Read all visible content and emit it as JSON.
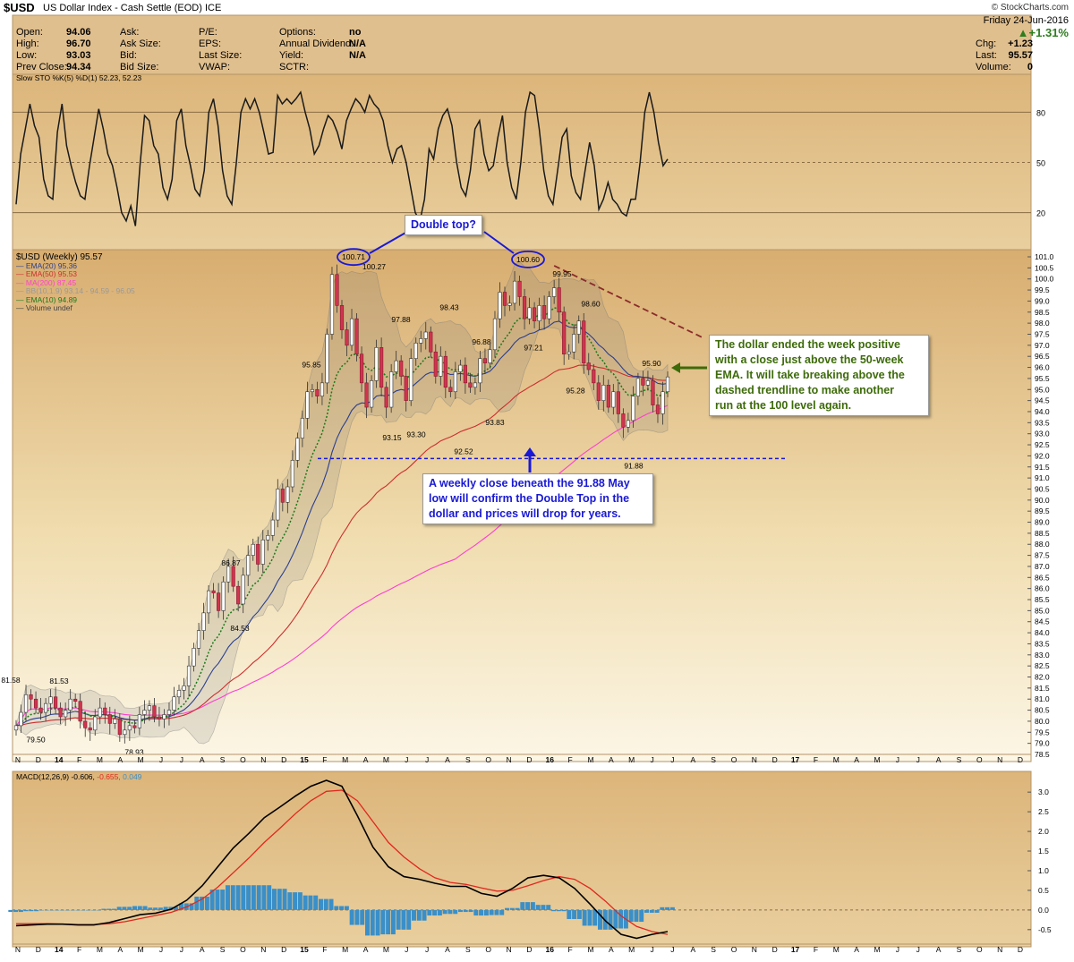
{
  "header": {
    "symbol": "$USD",
    "name": "US Dollar Index - Cash Settle (EOD)",
    "exchange": "ICE",
    "brand": "© StockCharts.com",
    "date": "Friday 24-Jun-2016",
    "change_pct": "▲+1.31%",
    "quote_left": [
      [
        "Open:",
        "94.06"
      ],
      [
        "High:",
        "96.70"
      ],
      [
        "Low:",
        "93.03"
      ],
      [
        "Prev Close:",
        "94.34"
      ]
    ],
    "quote_mid": [
      [
        "Ask:",
        ""
      ],
      [
        "Ask Size:",
        ""
      ],
      [
        "Bid:",
        ""
      ],
      [
        "Bid Size:",
        ""
      ]
    ],
    "quote_mid2": [
      [
        "P/E:",
        ""
      ],
      [
        "EPS:",
        ""
      ],
      [
        "Last Size:",
        ""
      ],
      [
        "VWAP:",
        ""
      ]
    ],
    "quote_mid3": [
      [
        "Options:",
        "no"
      ],
      [
        "Annual Dividend:",
        "N/A"
      ],
      [
        "Yield:",
        "N/A"
      ],
      [
        "SCTR:",
        ""
      ]
    ],
    "quote_right": [
      [
        "Chg:",
        "+1.23"
      ],
      [
        "Last:",
        "95.57"
      ],
      [
        "Volume:",
        "0"
      ]
    ]
  },
  "colors": {
    "panel": "#e0bf8e",
    "gradient_top": "#dfb882",
    "gradient_bottom": "#f8f0de",
    "up": "#ffffff",
    "down": "#d0344e",
    "ema20": "#2a3f8f",
    "ema50": "#cc2f2f",
    "ma200": "#ff3fd0",
    "ema10": "#1a7a1a",
    "bb": "#888888",
    "trend": "#8b2b2b",
    "annotation_blue": "#1919d6",
    "annotation_green": "#3d6b0a",
    "macd": "#000000",
    "signal": "#e0281e",
    "hist": "#3a8fc8"
  },
  "annotations": {
    "double_top": "Double top?",
    "green_note": [
      "The dollar ended the week positive",
      "with a close just above the 50-week",
      "EMA. It will take breaking above the",
      "dashed trendline to make another",
      "run at the 100 level again."
    ],
    "blue_note": [
      "A weekly close beneath the 91.88 May",
      "low will confirm the Double Top in the",
      "dollar and prices will drop for years."
    ]
  },
  "legends": {
    "sto": "Slow STO %K(5) %D(1) 52.23, 52.23",
    "sto_value_highlight": "52.23",
    "price": [
      {
        "text": "$USD (Weekly) 95.57",
        "color": "#000000"
      },
      {
        "text": "EMA(20) 95.36",
        "color": "#2a3f8f"
      },
      {
        "text": "EMA(50) 95.53",
        "color": "#cc2f2f"
      },
      {
        "text": "MA(200) 87.45",
        "color": "#ff3fd0"
      },
      {
        "text": "BB(10,1.9) 93.14 - 94.59 - 96.05",
        "color": "#999999"
      },
      {
        "text": "EMA(10) 94.89",
        "color": "#1a7a1a"
      },
      {
        "text": "Volume undef",
        "color": "#444444"
      }
    ],
    "macd": [
      "MACD(12,26,9)",
      "-0.606,",
      "-0.655,",
      "0.049"
    ]
  },
  "chart_data": [
    {
      "type": "line",
      "name": "Slow STO %K(5) %D(1)",
      "ylim": [
        0,
        100
      ],
      "yticks": [
        20,
        50,
        80
      ],
      "values": [
        25,
        55,
        70,
        85,
        72,
        65,
        40,
        30,
        28,
        68,
        85,
        60,
        48,
        38,
        30,
        28,
        48,
        65,
        82,
        70,
        55,
        48,
        35,
        20,
        15,
        24,
        12,
        48,
        78,
        75,
        60,
        55,
        35,
        28,
        40,
        75,
        82,
        60,
        48,
        34,
        30,
        45,
        80,
        88,
        72,
        45,
        30,
        25,
        50,
        80,
        88,
        82,
        88,
        80,
        68,
        55,
        56,
        90,
        85,
        88,
        85,
        88,
        92,
        80,
        70,
        55,
        60,
        70,
        78,
        75,
        68,
        58,
        75,
        82,
        88,
        85,
        80,
        90,
        85,
        82,
        75,
        60,
        50,
        58,
        60,
        50,
        35,
        20,
        15,
        28,
        58,
        52,
        70,
        78,
        82,
        72,
        50,
        35,
        30,
        45,
        70,
        75,
        55,
        45,
        48,
        65,
        78,
        50,
        35,
        28,
        50,
        80,
        92,
        90,
        70,
        45,
        30,
        25,
        45,
        65,
        70,
        42,
        32,
        28,
        45,
        62,
        48,
        22,
        28,
        38,
        28,
        25,
        20,
        18,
        28,
        28,
        50,
        80,
        92,
        80,
        62,
        48,
        52
      ]
    },
    {
      "type": "candlestick",
      "name": "$USD (Weekly)",
      "ylim": [
        78.5,
        101.0
      ],
      "x_labels": [
        "N",
        "D",
        "14",
        "F",
        "M",
        "A",
        "M",
        "J",
        "J",
        "A",
        "S",
        "O",
        "N",
        "D",
        "15",
        "F",
        "M",
        "A",
        "M",
        "J",
        "J",
        "A",
        "S",
        "O",
        "N",
        "D",
        "16",
        "F",
        "M",
        "A",
        "M",
        "J",
        "J",
        "A",
        "S",
        "O",
        "N",
        "D",
        "17",
        "F",
        "M",
        "A",
        "M",
        "J",
        "J",
        "A",
        "S",
        "O",
        "N",
        "D"
      ],
      "closes": [
        79.8,
        80.4,
        81.2,
        81.0,
        80.6,
        80.4,
        80.8,
        81.1,
        80.6,
        80.2,
        80.5,
        81.0,
        80.9,
        80.0,
        79.7,
        79.6,
        80.2,
        80.6,
        80.3,
        79.9,
        80.1,
        79.4,
        79.6,
        79.8,
        79.7,
        80.3,
        80.5,
        80.7,
        80.2,
        80.1,
        80.3,
        80.5,
        81.1,
        81.4,
        81.6,
        82.5,
        83.3,
        84.1,
        84.9,
        85.9,
        85.8,
        85.0,
        86.3,
        87.0,
        86.1,
        85.3,
        86.6,
        87.5,
        88.0,
        87.1,
        88.2,
        88.4,
        89.1,
        90.5,
        89.9,
        90.6,
        91.8,
        92.8,
        93.7,
        94.9,
        95.0,
        94.7,
        95.3,
        97.5,
        100.2,
        98.8,
        97.7,
        97.0,
        98.2,
        96.6,
        95.3,
        94.2,
        95.4,
        96.9,
        95.1,
        94.2,
        95.8,
        96.3,
        95.6,
        94.5,
        96.4,
        97.1,
        97.3,
        97.6,
        96.7,
        95.6,
        96.5,
        95.1,
        94.9,
        95.8,
        96.1,
        95.3,
        95.1,
        95.3,
        96.4,
        96.2,
        96.8,
        98.2,
        99.4,
        98.8,
        98.9,
        99.9,
        99.2,
        98.2,
        98.7,
        98.1,
        98.8,
        98.2,
        99.2,
        99.6,
        98.5,
        96.6,
        96.7,
        97.5,
        98.1,
        96.2,
        95.9,
        95.3,
        94.5,
        95.2,
        94.2,
        94.9,
        93.9,
        93.3,
        93.6,
        94.7,
        95.5,
        95.2,
        95.4,
        94.3,
        93.9,
        94.9,
        95.57
      ],
      "labels": [
        {
          "text": "81.58",
          "value": 81.58
        },
        {
          "text": "81.53",
          "value": 81.53
        },
        {
          "text": "79.50",
          "value": 79.5
        },
        {
          "text": "78.93",
          "value": 78.93
        },
        {
          "text": "86.87",
          "value": 86.87
        },
        {
          "text": "84.53",
          "value": 84.53
        },
        {
          "text": "95.85",
          "value": 95.85
        },
        {
          "text": "100.71",
          "value": 100.71
        },
        {
          "text": "100.27",
          "value": 100.27
        },
        {
          "text": "97.88",
          "value": 97.88
        },
        {
          "text": "93.15",
          "value": 93.15
        },
        {
          "text": "93.30",
          "value": 93.3
        },
        {
          "text": "98.43",
          "value": 98.43
        },
        {
          "text": "92.52",
          "value": 92.52
        },
        {
          "text": "96.88",
          "value": 96.88
        },
        {
          "text": "93.83",
          "value": 93.83
        },
        {
          "text": "100.60",
          "value": 100.6
        },
        {
          "text": "97.21",
          "value": 97.21
        },
        {
          "text": "99.95",
          "value": 99.95
        },
        {
          "text": "98.60",
          "value": 98.6
        },
        {
          "text": "95.28",
          "value": 95.28
        },
        {
          "text": "95.90",
          "value": 95.9
        },
        {
          "text": "91.88",
          "value": 91.88
        }
      ],
      "support_level": 91.88
    },
    {
      "type": "line",
      "name": "MACD(12,26,9)",
      "ylim": [
        -0.8,
        3.3
      ],
      "yticks": [
        -0.5,
        0.0,
        0.5,
        1.0,
        1.5,
        2.0,
        2.5,
        3.0
      ],
      "macd": [
        -0.4,
        -0.38,
        -0.36,
        -0.36,
        -0.38,
        -0.38,
        -0.32,
        -0.22,
        -0.12,
        -0.08,
        0.02,
        0.25,
        0.62,
        1.1,
        1.58,
        1.95,
        2.35,
        2.62,
        2.9,
        3.15,
        3.3,
        3.15,
        2.4,
        1.6,
        1.1,
        0.85,
        0.78,
        0.68,
        0.6,
        0.6,
        0.42,
        0.35,
        0.55,
        0.82,
        0.88,
        0.82,
        0.55,
        0.15,
        -0.28,
        -0.62,
        -0.72,
        -0.62,
        -0.55
      ],
      "signal": [
        -0.35,
        -0.35,
        -0.35,
        -0.36,
        -0.37,
        -0.37,
        -0.35,
        -0.3,
        -0.22,
        -0.14,
        -0.06,
        0.08,
        0.28,
        0.58,
        0.95,
        1.32,
        1.72,
        2.08,
        2.45,
        2.78,
        3.02,
        3.05,
        2.78,
        2.25,
        1.72,
        1.35,
        1.05,
        0.82,
        0.7,
        0.65,
        0.56,
        0.48,
        0.5,
        0.62,
        0.75,
        0.85,
        0.78,
        0.55,
        0.22,
        -0.15,
        -0.42,
        -0.55,
        -0.62
      ],
      "histogram": [
        -0.05,
        -0.03,
        -0.01,
        0.0,
        -0.01,
        -0.01,
        0.03,
        0.08,
        0.1,
        0.06,
        0.08,
        0.17,
        0.34,
        0.52,
        0.63,
        0.63,
        0.63,
        0.54,
        0.45,
        0.37,
        0.28,
        0.1,
        -0.38,
        -0.65,
        -0.62,
        -0.5,
        -0.27,
        -0.14,
        -0.1,
        -0.05,
        -0.14,
        -0.13,
        0.05,
        0.2,
        0.13,
        -0.03,
        -0.23,
        -0.4,
        -0.5,
        -0.47,
        -0.3,
        -0.07,
        0.07
      ]
    }
  ]
}
